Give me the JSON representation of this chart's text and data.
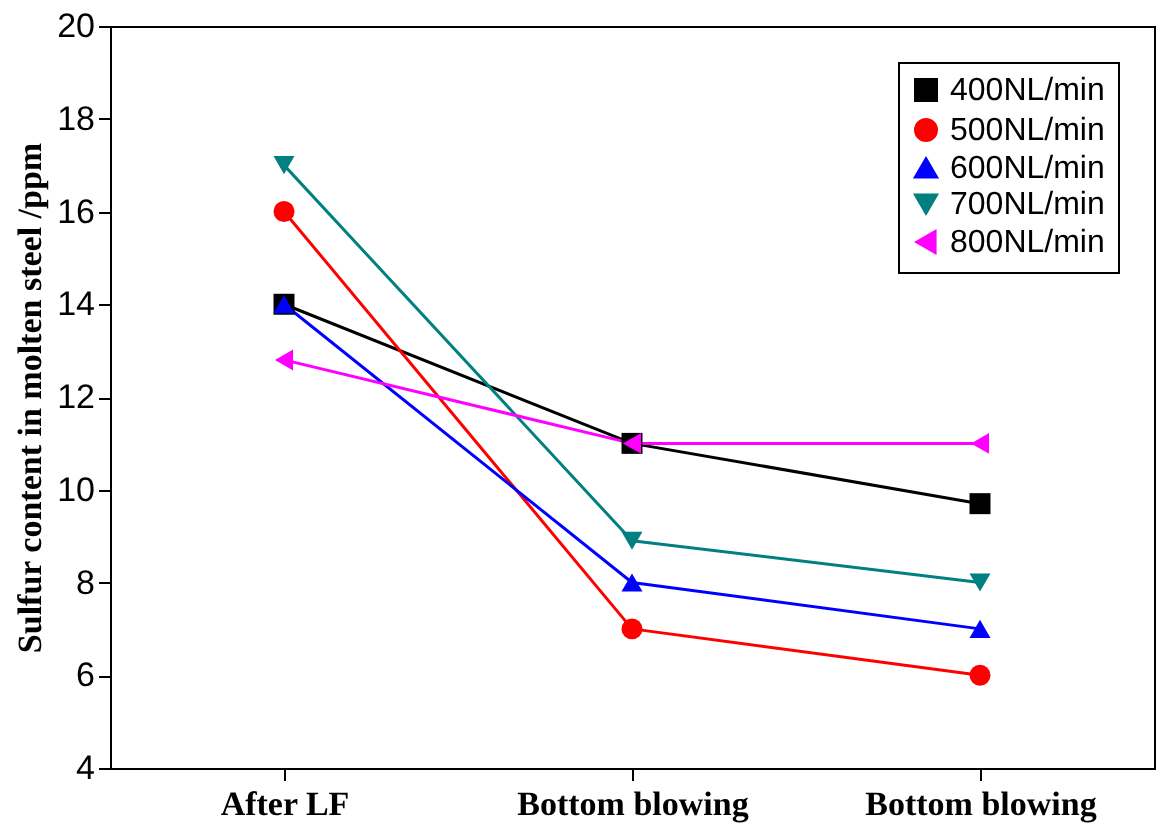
{
  "chart_data": {
    "type": "line",
    "ylabel": "Sulfur content in molten steel /ppm",
    "categories": [
      "After LF",
      "Bottom blowing",
      "Bottom blowing"
    ],
    "ylim": [
      4,
      20
    ],
    "yticks": [
      4,
      6,
      8,
      10,
      12,
      14,
      16,
      18,
      20
    ],
    "grid": false,
    "legend": "top right",
    "line_style": "solid",
    "series": [
      {
        "name": "400NL/min",
        "color": "#000000",
        "marker": "square",
        "values": [
          14,
          11,
          9.7
        ]
      },
      {
        "name": "500NL/min",
        "color": "#ff0000",
        "marker": "circle",
        "values": [
          16,
          7,
          6
        ]
      },
      {
        "name": "600NL/min",
        "color": "#0000ff",
        "marker": "triangle",
        "values": [
          14,
          8,
          7
        ]
      },
      {
        "name": "700NL/min",
        "color": "#008080",
        "marker": "triangle-down",
        "values": [
          17,
          8.9,
          8
        ]
      },
      {
        "name": "800NL/min",
        "color": "#ff00ff",
        "marker": "triangle-left",
        "values": [
          12.8,
          11,
          11
        ]
      }
    ]
  }
}
